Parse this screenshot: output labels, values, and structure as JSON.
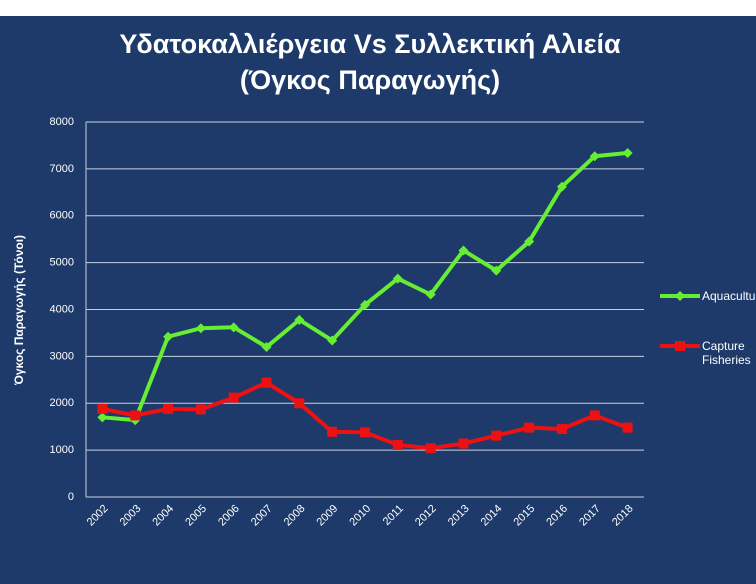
{
  "chart_data": {
    "type": "line",
    "title": "Υδατοκαλλιέργεια Vs Συλλεκτική Αλιεία",
    "subtitle": "(Όγκος Παραγωγής)",
    "y_label": "Όγκος Παραγωγής  (Τόνοι)",
    "categories": [
      "2002",
      "2003",
      "2004",
      "2005",
      "2006",
      "2007",
      "2008",
      "2009",
      "2010",
      "2011",
      "2012",
      "2013",
      "2014",
      "2015",
      "2016",
      "2017",
      "2018"
    ],
    "series": [
      {
        "name": "Aquaculture",
        "color": "#66ee33",
        "marker": "diamond",
        "values": [
          1700,
          1640,
          3420,
          3600,
          3620,
          3200,
          3780,
          3340,
          4100,
          4660,
          4320,
          5260,
          4830,
          5450,
          6620,
          7270,
          7340
        ]
      },
      {
        "name": "Capture Fisheries",
        "color": "#ee1111",
        "marker": "square",
        "values": [
          1880,
          1740,
          1880,
          1870,
          2120,
          2440,
          2000,
          1390,
          1380,
          1110,
          1040,
          1140,
          1310,
          1480,
          1450,
          1740,
          1480
        ]
      }
    ],
    "ylim": [
      0,
      8000
    ],
    "yticks": [
      0,
      1000,
      2000,
      3000,
      4000,
      5000,
      6000,
      7000,
      8000
    ],
    "grid": true,
    "legend": "right"
  }
}
